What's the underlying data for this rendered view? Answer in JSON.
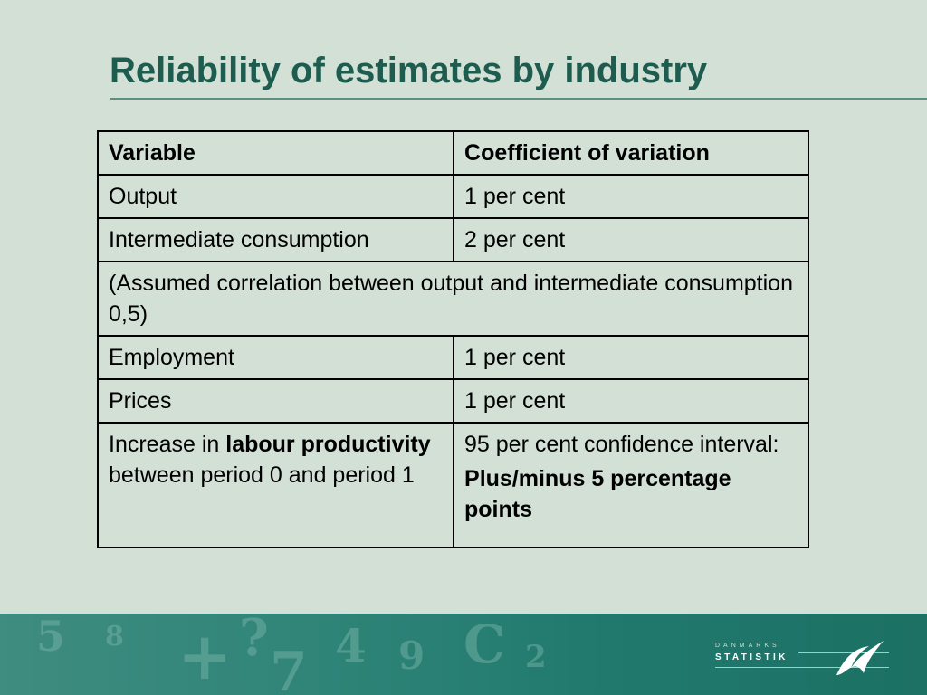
{
  "title": "Reliability of estimates by industry",
  "table": {
    "header": {
      "variable": "Variable",
      "coefficient": "Coefficient of variation"
    },
    "rows": [
      {
        "variable": "Output",
        "value": "1 per cent"
      },
      {
        "variable": "Intermediate consumption",
        "value": "2 per cent"
      }
    ],
    "note": "(Assumed correlation between output and intermediate consumption 0,5)",
    "rows_after": [
      {
        "variable": "Employment",
        "value": "1 per cent"
      },
      {
        "variable": "Prices",
        "value": "1 per cent"
      }
    ],
    "last_row": {
      "variable_pre": "Increase in ",
      "variable_bold": "labour productivity",
      "variable_post": " between period 0 and period 1",
      "value_line1": "95 per cent confidence interval:",
      "value_line2": "Plus/minus 5 percentage points"
    }
  },
  "footer": {
    "logo_small": "DANMARKS",
    "logo_main": "STATISTIK"
  },
  "colors": {
    "background": "#d3e0d6",
    "title": "#1f5c50",
    "footer_band": "#2a8074"
  },
  "icons": {
    "logo_mark": "bird-swoosh-icon"
  }
}
